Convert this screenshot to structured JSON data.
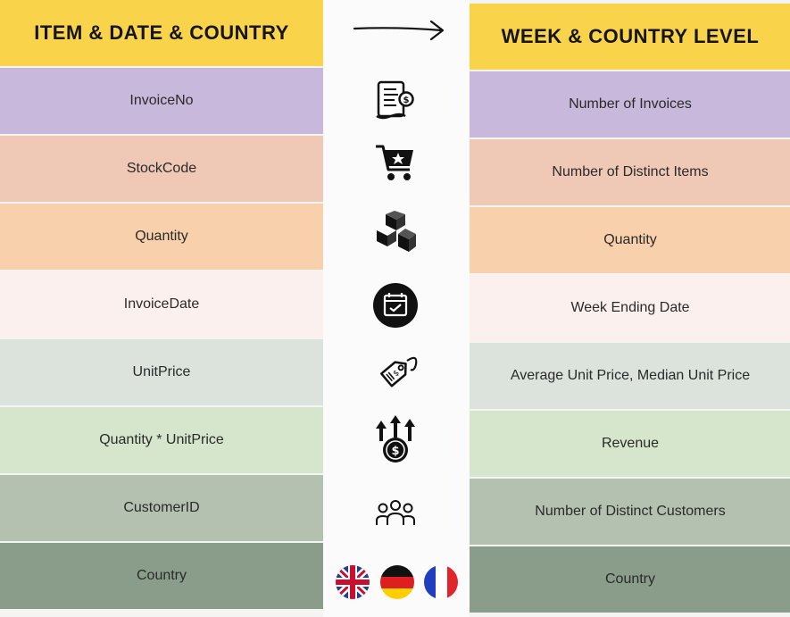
{
  "left_column": {
    "header": "ITEM & DATE & COUNTRY",
    "rows": [
      {
        "label": "InvoiceNo",
        "color": "#c8b8dc"
      },
      {
        "label": "StockCode",
        "color": "#f0c8b6"
      },
      {
        "label": "Quantity",
        "color": "#f8d0ac"
      },
      {
        "label": "InvoiceDate",
        "color": "#fcf0ee"
      },
      {
        "label": "UnitPrice",
        "color": "#dce2dc"
      },
      {
        "label": "Quantity * UnitPrice",
        "color": "#d6e6cc"
      },
      {
        "label": "CustomerID",
        "color": "#b4c0b0"
      },
      {
        "label": "Country",
        "color": "#8a9c8a"
      }
    ],
    "header_color": "#f9d44a"
  },
  "right_column": {
    "header": "WEEK & COUNTRY LEVEL",
    "rows": [
      {
        "label": "Number of Invoices",
        "color": "#c8b8dc"
      },
      {
        "label": "Number of Distinct Items",
        "color": "#f0c8b6"
      },
      {
        "label": "Quantity",
        "color": "#f8d0ac"
      },
      {
        "label": "Week Ending Date",
        "color": "#fcf0ee"
      },
      {
        "label": "Average Unit Price, Median Unit Price",
        "color": "#dce2dc"
      },
      {
        "label": "Revenue",
        "color": "#d6e6cc"
      },
      {
        "label": "Number of Distinct Customers",
        "color": "#b4c0b0"
      },
      {
        "label": "Country",
        "color": "#8a9c8a"
      }
    ],
    "header_color": "#f9d44a"
  },
  "icons": [
    "invoice-icon",
    "shopping-cart-icon",
    "boxes-icon",
    "calendar-icon",
    "price-tag-icon",
    "revenue-growth-icon",
    "customers-icon",
    "flags-icon"
  ]
}
